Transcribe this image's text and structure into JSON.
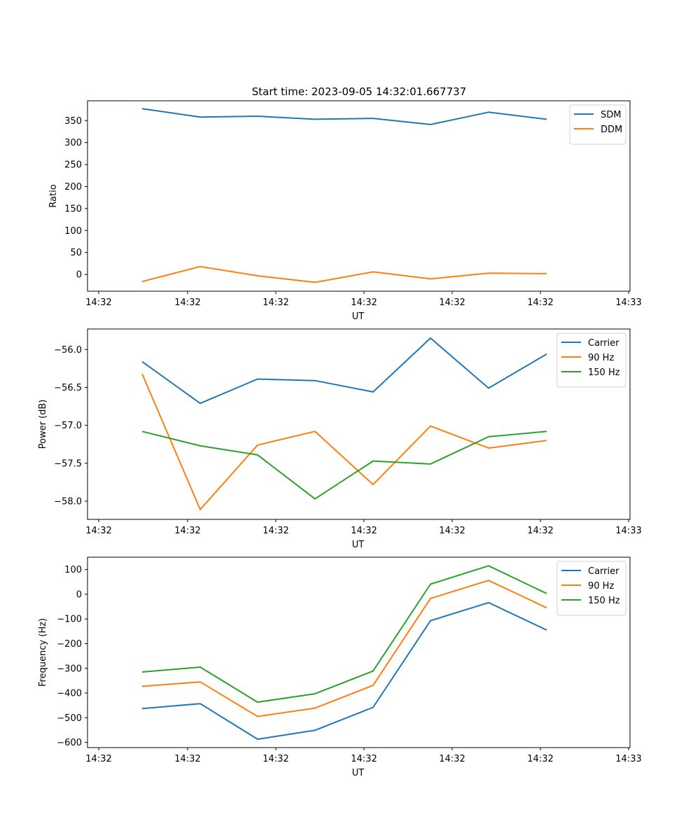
{
  "figure_title": "Start time: 2023-09-05 14:32:01.667737",
  "chart_data": [
    {
      "type": "line",
      "xlabel": "UT",
      "ylabel": "Ratio",
      "x_tick_labels": [
        "14:32",
        "14:32",
        "14:32",
        "14:32",
        "14:32",
        "14:32",
        "14:32",
        "14:33"
      ],
      "y_ticks": [
        0,
        50,
        100,
        150,
        200,
        250,
        300,
        350
      ],
      "ylim": [
        -38,
        395
      ],
      "legend_position": "top-right",
      "series": [
        {
          "name": "SDM",
          "color": "#1f77b4",
          "values": [
            377,
            358,
            360,
            353,
            355,
            341,
            369,
            353
          ]
        },
        {
          "name": "DDM",
          "color": "#ff7f0e",
          "values": [
            -16,
            18,
            -3,
            -18,
            6,
            -10,
            3,
            2
          ]
        }
      ]
    },
    {
      "type": "line",
      "xlabel": "UT",
      "ylabel": "Power (dB)",
      "x_tick_labels": [
        "14:32",
        "14:32",
        "14:32",
        "14:32",
        "14:32",
        "14:32",
        "14:32",
        "14:33"
      ],
      "y_ticks": [
        -56.0,
        -56.5,
        -57.0,
        -57.5,
        -58.0
      ],
      "y_tick_labels": [
        "−56.0",
        "−56.5",
        "−57.0",
        "−57.5",
        "−58.0"
      ],
      "ylim": [
        -58.24,
        -55.73
      ],
      "legend_position": "top-right",
      "series": [
        {
          "name": "Carrier",
          "color": "#1f77b4",
          "values": [
            -56.16,
            -56.71,
            -56.39,
            -56.41,
            -56.56,
            -55.85,
            -56.51,
            -56.06
          ]
        },
        {
          "name": "90 Hz",
          "color": "#ff7f0e",
          "values": [
            -56.32,
            -58.11,
            -57.26,
            -57.08,
            -57.78,
            -57.01,
            -57.3,
            -57.2
          ]
        },
        {
          "name": "150 Hz",
          "color": "#2ca02c",
          "values": [
            -57.08,
            -57.27,
            -57.39,
            -57.97,
            -57.47,
            -57.51,
            -57.15,
            -57.08
          ]
        }
      ]
    },
    {
      "type": "line",
      "xlabel": "UT",
      "ylabel": "Frequency (Hz)",
      "x_tick_labels": [
        "14:32",
        "14:32",
        "14:32",
        "14:32",
        "14:32",
        "14:32",
        "14:32",
        "14:33"
      ],
      "y_ticks": [
        100,
        0,
        -100,
        -200,
        -300,
        -400,
        -500,
        -600
      ],
      "y_tick_labels": [
        "100",
        "0",
        "−100",
        "−200",
        "−300",
        "−400",
        "−500",
        "−600"
      ],
      "ylim": [
        -621,
        150
      ],
      "legend_position": "top-right",
      "series": [
        {
          "name": "Carrier",
          "color": "#1f77b4",
          "values": [
            -463,
            -443,
            -587,
            -551,
            -458,
            -107,
            -34,
            -145
          ]
        },
        {
          "name": "90 Hz",
          "color": "#ff7f0e",
          "values": [
            -373,
            -355,
            -495,
            -461,
            -369,
            -17,
            56,
            -55
          ]
        },
        {
          "name": "150 Hz",
          "color": "#2ca02c",
          "values": [
            -315,
            -295,
            -437,
            -403,
            -311,
            41,
            115,
            3
          ]
        }
      ]
    }
  ]
}
